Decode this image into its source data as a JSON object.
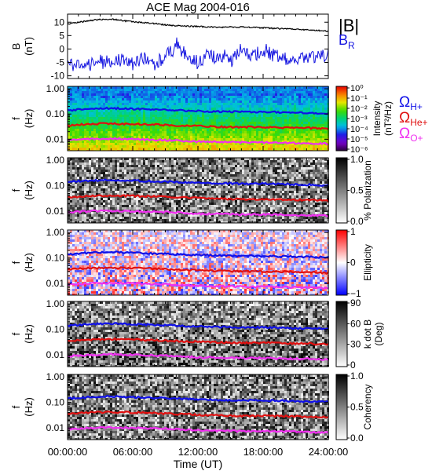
{
  "title": "ACE Mag 2004-016",
  "colors": {
    "B_total": "#000000",
    "B_R": "#1515e0",
    "omega_H": "#1010e8",
    "omega_He": "#e01010",
    "omega_O": "#f030f0"
  },
  "legend": {
    "B": "|B|",
    "BR_main": "B",
    "BR_sub": "R",
    "omega": "Ω",
    "H_sub": "H+",
    "He_sub": "He+",
    "O_sub": "O+"
  },
  "xaxis": {
    "label": "Time (UT)",
    "ticks": [
      "00:00:00",
      "06:00:00",
      "12:00:00",
      "18:00:00",
      "24:00:00"
    ],
    "range": [
      0,
      24
    ]
  },
  "chart_data": [
    {
      "type": "line",
      "name": "field",
      "ylabel_main": "B",
      "ylabel_unit": "(nT)",
      "ylim": [
        -11,
        13
      ],
      "yticks": [
        "10",
        "5",
        "0",
        "-5",
        "-10"
      ],
      "ytick_values": [
        10,
        5,
        0,
        -5,
        -10
      ],
      "x_hours": [
        0,
        1,
        2,
        3,
        4,
        5,
        6,
        7,
        8,
        9,
        10,
        11,
        12,
        13,
        14,
        15,
        16,
        17,
        18,
        19,
        20,
        21,
        22,
        23,
        24
      ],
      "series": [
        {
          "name": "|B|",
          "values": [
            9.3,
            10.0,
            10.6,
            11.0,
            11.2,
            10.6,
            10.1,
            9.8,
            9.5,
            9.0,
            8.7,
            8.5,
            8.4,
            8.2,
            8.1,
            8.2,
            8.2,
            8.1,
            7.9,
            7.7,
            7.5,
            7.4,
            7.1,
            6.9,
            6.7
          ]
        },
        {
          "name": "BR",
          "values": [
            -4.0,
            -6.5,
            -6.0,
            -4.5,
            -5.0,
            -4.0,
            -5.5,
            -3.0,
            -5.5,
            -3.0,
            1.0,
            -2.5,
            -5.5,
            -2.0,
            -4.0,
            -5.0,
            0.0,
            -3.0,
            0.0,
            -2.5,
            -3.5,
            -3.0,
            -3.5,
            -3.0,
            -2.5
          ]
        }
      ]
    },
    {
      "type": "heatmap",
      "name": "intensity",
      "ylabel_main": "f",
      "ylabel_unit": "(Hz)",
      "yticks": [
        "1.00",
        "0.10",
        "0.01"
      ],
      "colorbar_label": "Intensity",
      "colorbar_unit": "(nT²/Hz)",
      "colorbar_ticks": [
        "10⁰",
        "10⁻¹",
        "10⁻²",
        "10⁻³",
        "10⁻⁴",
        "10⁻⁵",
        "10⁻⁶"
      ],
      "colorscale": "rainbow"
    },
    {
      "type": "heatmap",
      "name": "polarization",
      "ylabel_main": "f",
      "ylabel_unit": "(Hz)",
      "yticks": [
        "1.00",
        "0.10",
        "0.01"
      ],
      "colorbar_label": "% Polarization",
      "colorbar_ticks": [
        "1.0",
        "0.5",
        "0.0"
      ],
      "colorscale": "gray"
    },
    {
      "type": "heatmap",
      "name": "ellipticity",
      "ylabel_main": "f",
      "ylabel_unit": "(Hz)",
      "yticks": [
        "1.00",
        "0.10",
        "0.01"
      ],
      "colorbar_label": "Ellipticity",
      "colorbar_ticks": [
        "1",
        "0",
        "−1"
      ],
      "colorscale": "bwr"
    },
    {
      "type": "heatmap",
      "name": "kdotb",
      "ylabel_main": "f",
      "ylabel_unit": "(Hz)",
      "yticks": [
        "1.00",
        "0.10",
        "0.01"
      ],
      "colorbar_label": "k dot B",
      "colorbar_unit": "(Deg)",
      "colorbar_ticks": [
        "90",
        "60",
        "30",
        "0"
      ],
      "colorscale": "gray"
    },
    {
      "type": "heatmap",
      "name": "coherency",
      "ylabel_main": "f",
      "ylabel_unit": "(Hz)",
      "yticks": [
        "1.00",
        "0.10",
        "0.01"
      ],
      "colorbar_label": "Coherency",
      "colorbar_ticks": [
        "1.0",
        "0.5",
        "0.0"
      ],
      "colorscale": "gray"
    }
  ],
  "gyrofrequency_lines": {
    "x_hours": [
      0,
      2,
      4,
      6,
      8,
      10,
      12,
      14,
      16,
      18,
      20,
      22,
      24
    ],
    "H_plus_hz": [
      0.14,
      0.16,
      0.17,
      0.16,
      0.15,
      0.14,
      0.13,
      0.125,
      0.12,
      0.12,
      0.115,
      0.11,
      0.105
    ],
    "He_plus_hz": [
      0.035,
      0.04,
      0.042,
      0.04,
      0.038,
      0.035,
      0.033,
      0.031,
      0.03,
      0.03,
      0.029,
      0.028,
      0.026
    ],
    "O_plus_hz": [
      0.009,
      0.01,
      0.0105,
      0.01,
      0.0095,
      0.009,
      0.008,
      0.0078,
      0.0075,
      0.0075,
      0.0072,
      0.007,
      0.0066
    ]
  }
}
